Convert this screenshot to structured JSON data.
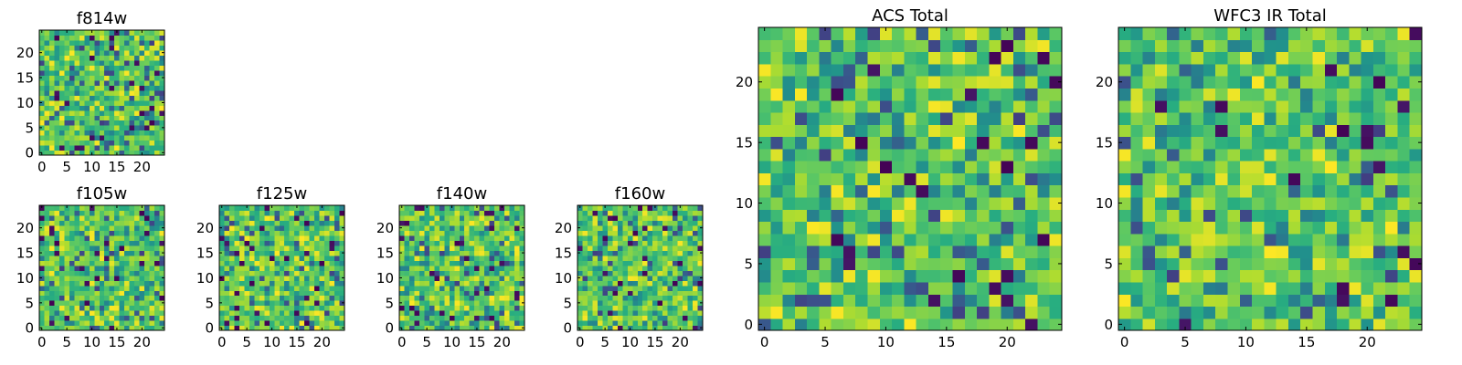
{
  "chart_data": [
    {
      "type": "heatmap",
      "title": "f814w",
      "xlim": [
        -0.5,
        24.5
      ],
      "ylim": [
        -0.5,
        24.5
      ],
      "xticks": [
        0,
        5,
        10,
        15,
        20
      ],
      "yticks": [
        0,
        5,
        10,
        15,
        20
      ],
      "shape": [
        25,
        25
      ],
      "colormap": "viridis",
      "grid": false
    },
    {
      "type": "heatmap",
      "title": "f105w",
      "xlim": [
        -0.5,
        24.5
      ],
      "ylim": [
        -0.5,
        24.5
      ],
      "xticks": [
        0,
        5,
        10,
        15,
        20
      ],
      "yticks": [
        0,
        5,
        10,
        15,
        20
      ],
      "shape": [
        25,
        25
      ],
      "colormap": "viridis",
      "grid": false
    },
    {
      "type": "heatmap",
      "title": "f125w",
      "xlim": [
        -0.5,
        24.5
      ],
      "ylim": [
        -0.5,
        24.5
      ],
      "xticks": [
        0,
        5,
        10,
        15,
        20
      ],
      "yticks": [
        0,
        5,
        10,
        15,
        20
      ],
      "shape": [
        25,
        25
      ],
      "colormap": "viridis",
      "grid": false
    },
    {
      "type": "heatmap",
      "title": "f140w",
      "xlim": [
        -0.5,
        24.5
      ],
      "ylim": [
        -0.5,
        24.5
      ],
      "xticks": [
        0,
        5,
        10,
        15,
        20
      ],
      "yticks": [
        0,
        5,
        10,
        15,
        20
      ],
      "shape": [
        25,
        25
      ],
      "colormap": "viridis",
      "grid": false
    },
    {
      "type": "heatmap",
      "title": "f160w",
      "xlim": [
        -0.5,
        24.5
      ],
      "ylim": [
        -0.5,
        24.5
      ],
      "xticks": [
        0,
        5,
        10,
        15,
        20
      ],
      "yticks": [
        0,
        5,
        10,
        15,
        20
      ],
      "shape": [
        25,
        25
      ],
      "colormap": "viridis",
      "grid": false
    },
    {
      "type": "heatmap",
      "title": "ACS Total",
      "xlim": [
        -0.5,
        24.5
      ],
      "ylim": [
        -0.5,
        24.5
      ],
      "xticks": [
        0,
        5,
        10,
        15,
        20
      ],
      "yticks": [
        0,
        5,
        10,
        15,
        20
      ],
      "shape": [
        25,
        25
      ],
      "colormap": "viridis",
      "grid": false
    },
    {
      "type": "heatmap",
      "title": "WFC3 IR Total",
      "xlim": [
        -0.5,
        24.5
      ],
      "ylim": [
        -0.5,
        24.5
      ],
      "xticks": [
        0,
        5,
        10,
        15,
        20
      ],
      "yticks": [
        0,
        5,
        10,
        15,
        20
      ],
      "shape": [
        25,
        25
      ],
      "colormap": "viridis",
      "grid": false
    }
  ]
}
